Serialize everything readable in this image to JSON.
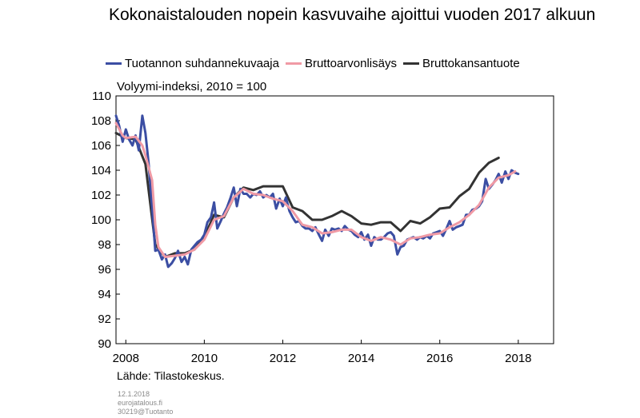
{
  "chart_data": {
    "type": "line",
    "title": "Kokonaistalouden nopein kasvuvaihe ajoittui vuoden 2017 alkuun",
    "ylabel": "Volyymi-indeksi, 2010 = 100",
    "source": "Lähde: Tilastokeskus.",
    "xlim": [
      2007.75,
      2018.9
    ],
    "ylim": [
      90,
      110
    ],
    "yticks": [
      "110",
      "108",
      "106",
      "104",
      "102",
      "100",
      "98",
      "96",
      "94",
      "92",
      "90"
    ],
    "xticks": [
      "2008",
      "2010",
      "2012",
      "2014",
      "2016",
      "2018"
    ],
    "legend_position": "top",
    "grid": false,
    "series": [
      {
        "name": "Tuotannon suhdannekuvaaja",
        "color": "#3b4ea3",
        "points": [
          [
            2007.75,
            108.4
          ],
          [
            2007.83,
            107.6
          ],
          [
            2007.92,
            106.3
          ],
          [
            2008.0,
            107.3
          ],
          [
            2008.08,
            106.5
          ],
          [
            2008.17,
            106.0
          ],
          [
            2008.25,
            106.8
          ],
          [
            2008.33,
            105.6
          ],
          [
            2008.42,
            108.4
          ],
          [
            2008.5,
            107.0
          ],
          [
            2008.58,
            104.6
          ],
          [
            2008.67,
            101.0
          ],
          [
            2008.75,
            97.5
          ],
          [
            2008.83,
            97.6
          ],
          [
            2008.92,
            96.8
          ],
          [
            2009.0,
            97.2
          ],
          [
            2009.08,
            96.2
          ],
          [
            2009.17,
            96.5
          ],
          [
            2009.25,
            96.9
          ],
          [
            2009.33,
            97.5
          ],
          [
            2009.42,
            96.6
          ],
          [
            2009.5,
            97.0
          ],
          [
            2009.58,
            96.4
          ],
          [
            2009.67,
            97.6
          ],
          [
            2009.75,
            97.9
          ],
          [
            2009.83,
            98.2
          ],
          [
            2009.92,
            98.4
          ],
          [
            2010.0,
            98.8
          ],
          [
            2010.08,
            99.8
          ],
          [
            2010.17,
            100.2
          ],
          [
            2010.25,
            101.4
          ],
          [
            2010.33,
            99.3
          ],
          [
            2010.42,
            99.9
          ],
          [
            2010.5,
            100.5
          ],
          [
            2010.58,
            101.0
          ],
          [
            2010.67,
            101.8
          ],
          [
            2010.75,
            102.6
          ],
          [
            2010.83,
            101.1
          ],
          [
            2010.92,
            102.5
          ],
          [
            2011.0,
            102.1
          ],
          [
            2011.08,
            102.1
          ],
          [
            2011.17,
            101.8
          ],
          [
            2011.25,
            102.1
          ],
          [
            2011.33,
            102.0
          ],
          [
            2011.42,
            102.3
          ],
          [
            2011.5,
            101.8
          ],
          [
            2011.58,
            102.0
          ],
          [
            2011.67,
            101.8
          ],
          [
            2011.75,
            102.1
          ],
          [
            2011.83,
            100.9
          ],
          [
            2011.92,
            101.7
          ],
          [
            2012.0,
            101.1
          ],
          [
            2012.08,
            101.8
          ],
          [
            2012.17,
            100.7
          ],
          [
            2012.25,
            100.2
          ],
          [
            2012.33,
            99.8
          ],
          [
            2012.42,
            99.9
          ],
          [
            2012.5,
            99.5
          ],
          [
            2012.58,
            99.3
          ],
          [
            2012.67,
            99.3
          ],
          [
            2012.75,
            99.1
          ],
          [
            2012.83,
            99.4
          ],
          [
            2012.92,
            98.8
          ],
          [
            2013.0,
            98.3
          ],
          [
            2013.08,
            99.2
          ],
          [
            2013.17,
            98.7
          ],
          [
            2013.25,
            99.3
          ],
          [
            2013.33,
            99.2
          ],
          [
            2013.42,
            99.3
          ],
          [
            2013.5,
            99.1
          ],
          [
            2013.58,
            99.5
          ],
          [
            2013.67,
            99.2
          ],
          [
            2013.75,
            99.1
          ],
          [
            2013.83,
            98.8
          ],
          [
            2013.92,
            98.6
          ],
          [
            2014.0,
            99.0
          ],
          [
            2014.08,
            98.4
          ],
          [
            2014.17,
            98.8
          ],
          [
            2014.25,
            97.9
          ],
          [
            2014.33,
            98.6
          ],
          [
            2014.42,
            98.4
          ],
          [
            2014.5,
            98.4
          ],
          [
            2014.58,
            98.6
          ],
          [
            2014.67,
            98.9
          ],
          [
            2014.75,
            99.0
          ],
          [
            2014.83,
            98.7
          ],
          [
            2014.92,
            97.2
          ],
          [
            2015.0,
            97.8
          ],
          [
            2015.08,
            97.9
          ],
          [
            2015.17,
            98.4
          ],
          [
            2015.25,
            98.5
          ],
          [
            2015.33,
            98.6
          ],
          [
            2015.42,
            98.4
          ],
          [
            2015.5,
            98.6
          ],
          [
            2015.58,
            98.5
          ],
          [
            2015.67,
            98.7
          ],
          [
            2015.75,
            98.5
          ],
          [
            2015.83,
            98.9
          ],
          [
            2015.92,
            99.0
          ],
          [
            2016.0,
            99.1
          ],
          [
            2016.08,
            98.7
          ],
          [
            2016.17,
            99.3
          ],
          [
            2016.25,
            99.9
          ],
          [
            2016.33,
            99.2
          ],
          [
            2016.42,
            99.4
          ],
          [
            2016.5,
            99.5
          ],
          [
            2016.58,
            99.6
          ],
          [
            2016.67,
            100.4
          ],
          [
            2016.75,
            100.4
          ],
          [
            2016.83,
            100.8
          ],
          [
            2016.92,
            100.9
          ],
          [
            2017.0,
            101.1
          ],
          [
            2017.08,
            101.5
          ],
          [
            2017.17,
            103.3
          ],
          [
            2017.25,
            102.5
          ],
          [
            2017.33,
            102.8
          ],
          [
            2017.42,
            103.2
          ],
          [
            2017.5,
            103.7
          ],
          [
            2017.58,
            103.0
          ],
          [
            2017.67,
            103.9
          ],
          [
            2017.75,
            103.3
          ],
          [
            2017.83,
            104.0
          ],
          [
            2017.92,
            103.8
          ],
          [
            2018.0,
            103.7
          ]
        ]
      },
      {
        "name": "Bruttoarvonlisäys",
        "color": "#f09aa5",
        "points": [
          [
            2007.75,
            107.8
          ],
          [
            2007.92,
            106.8
          ],
          [
            2008.0,
            106.6
          ],
          [
            2008.25,
            106.7
          ],
          [
            2008.42,
            106.0
          ],
          [
            2008.5,
            105.2
          ],
          [
            2008.67,
            103.2
          ],
          [
            2008.75,
            99.6
          ],
          [
            2008.83,
            97.8
          ],
          [
            2009.0,
            97.0
          ],
          [
            2009.25,
            97.1
          ],
          [
            2009.5,
            97.2
          ],
          [
            2009.75,
            97.6
          ],
          [
            2010.0,
            98.4
          ],
          [
            2010.25,
            100.0
          ],
          [
            2010.5,
            100.3
          ],
          [
            2010.75,
            101.8
          ],
          [
            2011.0,
            102.5
          ],
          [
            2011.25,
            102.1
          ],
          [
            2011.5,
            102.0
          ],
          [
            2011.75,
            101.7
          ],
          [
            2012.0,
            101.5
          ],
          [
            2012.25,
            100.7
          ],
          [
            2012.5,
            99.6
          ],
          [
            2012.75,
            99.4
          ],
          [
            2013.0,
            98.9
          ],
          [
            2013.25,
            99.0
          ],
          [
            2013.5,
            99.2
          ],
          [
            2013.75,
            99.2
          ],
          [
            2014.0,
            98.6
          ],
          [
            2014.25,
            98.3
          ],
          [
            2014.5,
            98.6
          ],
          [
            2014.75,
            98.4
          ],
          [
            2015.0,
            98.0
          ],
          [
            2015.25,
            98.5
          ],
          [
            2015.5,
            98.6
          ],
          [
            2015.75,
            98.8
          ],
          [
            2016.0,
            98.9
          ],
          [
            2016.25,
            99.4
          ],
          [
            2016.5,
            99.8
          ],
          [
            2016.75,
            100.4
          ],
          [
            2017.0,
            101.2
          ],
          [
            2017.25,
            102.6
          ],
          [
            2017.5,
            103.4
          ],
          [
            2017.75,
            103.6
          ],
          [
            2017.92,
            103.9
          ]
        ]
      },
      {
        "name": "Bruttokansantuote",
        "color": "#333333",
        "points": [
          [
            2007.75,
            107.0
          ],
          [
            2008.0,
            106.6
          ],
          [
            2008.25,
            106.5
          ],
          [
            2008.5,
            104.5
          ],
          [
            2008.75,
            98.0
          ],
          [
            2009.0,
            97.0
          ],
          [
            2009.25,
            97.3
          ],
          [
            2009.5,
            97.3
          ],
          [
            2009.75,
            97.6
          ],
          [
            2010.0,
            98.6
          ],
          [
            2010.25,
            100.4
          ],
          [
            2010.5,
            100.2
          ],
          [
            2010.75,
            101.8
          ],
          [
            2011.0,
            102.6
          ],
          [
            2011.25,
            102.4
          ],
          [
            2011.5,
            102.7
          ],
          [
            2011.75,
            102.7
          ],
          [
            2012.0,
            102.7
          ],
          [
            2012.25,
            101.0
          ],
          [
            2012.5,
            100.7
          ],
          [
            2012.75,
            100.0
          ],
          [
            2013.0,
            100.0
          ],
          [
            2013.25,
            100.3
          ],
          [
            2013.5,
            100.7
          ],
          [
            2013.75,
            100.3
          ],
          [
            2014.0,
            99.7
          ],
          [
            2014.25,
            99.6
          ],
          [
            2014.5,
            99.8
          ],
          [
            2014.75,
            99.8
          ],
          [
            2015.0,
            99.1
          ],
          [
            2015.25,
            99.9
          ],
          [
            2015.5,
            99.7
          ],
          [
            2015.75,
            100.2
          ],
          [
            2016.0,
            100.9
          ],
          [
            2016.25,
            101.0
          ],
          [
            2016.5,
            101.9
          ],
          [
            2016.75,
            102.5
          ],
          [
            2017.0,
            103.8
          ],
          [
            2017.25,
            104.6
          ],
          [
            2017.5,
            105.0
          ]
        ]
      }
    ]
  },
  "footer": {
    "date": "12.1.2018",
    "site": "eurojatalous.fi",
    "code": "30219@Tuotanto"
  }
}
